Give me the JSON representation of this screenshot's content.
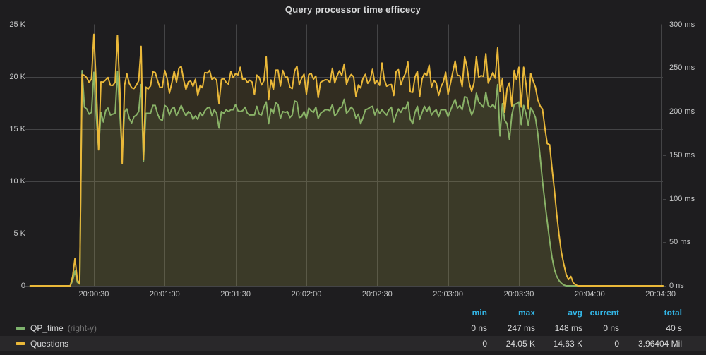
{
  "panel": {
    "title": "Query processor time efficecy"
  },
  "colors": {
    "background": "#1e1d1f",
    "grid": "#444446",
    "axis_text": "#c8c9ca",
    "title_text": "#d8d9da",
    "legend_header": "#33b5e5",
    "legend_text": "#d8d9da",
    "legend_note": "#757575",
    "series_green": "#7EB26D",
    "series_yellow": "#EAB839"
  },
  "chart_data": {
    "type": "line",
    "title": "Query processor time efficecy",
    "x_domain_s": [
      2.5,
      271
    ],
    "x_ticks": [
      {
        "s": 30,
        "label": "20:00:30"
      },
      {
        "s": 60,
        "label": "20:01:00"
      },
      {
        "s": 90,
        "label": "20:01:30"
      },
      {
        "s": 120,
        "label": "20:02:00"
      },
      {
        "s": 150,
        "label": "20:02:30"
      },
      {
        "s": 180,
        "label": "20:03:00"
      },
      {
        "s": 210,
        "label": "20:03:30"
      },
      {
        "s": 240,
        "label": "20:04:00"
      },
      {
        "s": 270,
        "label": "20:04:30"
      }
    ],
    "left_axis": {
      "min": 0,
      "max": 25,
      "unit": "K",
      "ticks": [
        {
          "v": 0,
          "label": "0"
        },
        {
          "v": 5,
          "label": "5 K"
        },
        {
          "v": 10,
          "label": "10 K"
        },
        {
          "v": 15,
          "label": "15 K"
        },
        {
          "v": 20,
          "label": "20 K"
        },
        {
          "v": 25,
          "label": "25 K"
        }
      ]
    },
    "right_axis": {
      "min": 0,
      "max": 300,
      "unit": "ms",
      "ticks": [
        {
          "v": 0,
          "label": "0 ns"
        },
        {
          "v": 50,
          "label": "50 ms"
        },
        {
          "v": 100,
          "label": "100 ms"
        },
        {
          "v": 150,
          "label": "150 ms"
        },
        {
          "v": 200,
          "label": "200 ms"
        },
        {
          "v": 250,
          "label": "250 ms"
        },
        {
          "v": 300,
          "label": "300 ms"
        }
      ]
    },
    "grid": true,
    "legend_position": "bottom",
    "series": [
      {
        "name": "QP_time",
        "axis": "right",
        "unit": "ms",
        "color": "#7EB26D",
        "fill_opacity": 0.1,
        "line_width": 2,
        "t0": 3,
        "dt": 1,
        "values": [
          0,
          0,
          0,
          0,
          0,
          0,
          0,
          0,
          0,
          0,
          0,
          0,
          0,
          0,
          0,
          0,
          0,
          0,
          6,
          17,
          4,
          2,
          247,
          205,
          203,
          197,
          199,
          245,
          196,
          157,
          199,
          188,
          201,
          204,
          196,
          197,
          198,
          246,
          197,
          152,
          200,
          203,
          192,
          187,
          194,
          196,
          200,
          231,
          143,
          198,
          198,
          198,
          207,
          207,
          197,
          191,
          190,
          207,
          205,
          196,
          203,
          205,
          195,
          201,
          207,
          200,
          195,
          200,
          198,
          191,
          195,
          191,
          199,
          195,
          201,
          204,
          205,
          195,
          202,
          198,
          181,
          200,
          198,
          202,
          200,
          202,
          202,
          208,
          201,
          200,
          201,
          205,
          198,
          196,
          196,
          196,
          206,
          197,
          196,
          205,
          211,
          186,
          203,
          198,
          210,
          208,
          192,
          200,
          199,
          200,
          193,
          196,
          212,
          211,
          193,
          194,
          200,
          192,
          204,
          201,
          199,
          205,
          192,
          198,
          200,
          202,
          202,
          201,
          208,
          195,
          198,
          204,
          205,
          214,
          198,
          201,
          205,
          202,
          192,
          197,
          186,
          193,
          202,
          203,
          205,
          206,
          196,
          203,
          198,
          202,
          199,
          196,
          202,
          205,
          188,
          196,
          203,
          199,
          204,
          203,
          211,
          191,
          186,
          199,
          206,
          191,
          199,
          206,
          200,
          206,
          196,
          200,
          202,
          194,
          202,
          202,
          202,
          194,
          201,
          208,
          214,
          204,
          207,
          202,
          217,
          216,
          205,
          196,
          202,
          221,
          211,
          208,
          205,
          222,
          207,
          205,
          208,
          204,
          231,
          172,
          209,
          190,
          186,
          168,
          196,
          208,
          209,
          211,
          185,
          207,
          198,
          184,
          204,
          200,
          193,
          175,
          148,
          120,
          96,
          74,
          52,
          33,
          19,
          11,
          6,
          3,
          1,
          0,
          0,
          0,
          0,
          0,
          0,
          0,
          0,
          0,
          0,
          0,
          0,
          0,
          0,
          0,
          0,
          0,
          0,
          0,
          0,
          0,
          0,
          0,
          0,
          0,
          0,
          0,
          0,
          0,
          0,
          0,
          0,
          0,
          0,
          0,
          0,
          0,
          0,
          0,
          0,
          0,
          0
        ]
      },
      {
        "name": "Questions",
        "axis": "left",
        "unit": "K",
        "color": "#EAB839",
        "fill_opacity": 0.1,
        "line_width": 2,
        "t0": 3,
        "dt": 1,
        "values": [
          0.0,
          0.0,
          0.0,
          0.0,
          0.0,
          0.0,
          0.0,
          0.0,
          0.0,
          0.0,
          0.0,
          0.0,
          0.0,
          0.0,
          0.0,
          0.0,
          0.0,
          0.0,
          0.9,
          2.62,
          0.55,
          0.22,
          20.2,
          20.12,
          19.9,
          19.45,
          19.8,
          24.05,
          19.3,
          13.0,
          19.5,
          19.49,
          19.69,
          19.92,
          19.18,
          19.16,
          19.46,
          23.95,
          18.8,
          11.7,
          19.2,
          20.27,
          19.36,
          18.95,
          18.86,
          19.2,
          19.61,
          22.9,
          12.1,
          19.0,
          18.83,
          19.11,
          20.45,
          20.4,
          19.6,
          18.96,
          19.0,
          20.6,
          19.85,
          18.43,
          19.37,
          20.53,
          19.48,
          20.8,
          20.98,
          19.69,
          18.78,
          19.51,
          19.58,
          19.08,
          19.75,
          18.2,
          19.18,
          18.95,
          20.4,
          20.35,
          20.6,
          19.74,
          19.92,
          19.65,
          17.4,
          19.74,
          19.82,
          19.46,
          19.29,
          20.5,
          19.9,
          20.3,
          20.17,
          20.9,
          19.73,
          19.82,
          19.44,
          19.66,
          19.48,
          18.3,
          20.15,
          19.94,
          19.21,
          19.61,
          21.9,
          17.8,
          19.68,
          18.76,
          20.62,
          20.63,
          19.11,
          20.6,
          19.95,
          19.96,
          19.01,
          18.86,
          20.55,
          21.0,
          19.24,
          19.86,
          20.24,
          18.3,
          20.19,
          20.32,
          19.75,
          20.07,
          18.0,
          19.46,
          19.58,
          19.7,
          19.68,
          19.44,
          20.8,
          19.4,
          20.09,
          20.56,
          20.12,
          21.2,
          19.28,
          19.89,
          20.21,
          20.0,
          18.1,
          19.21,
          18.92,
          19.85,
          20.22,
          19.36,
          19.68,
          20.7,
          19.34,
          19.63,
          19.18,
          21.3,
          19.75,
          19.09,
          19.22,
          19.26,
          18.2,
          20.5,
          20.67,
          19.22,
          19.87,
          20.33,
          21.4,
          18.55,
          18.5,
          19.96,
          20.51,
          18.1,
          19.8,
          20.34,
          20.1,
          21.1,
          19.0,
          19.64,
          19.4,
          18.2,
          19.02,
          19.51,
          20.42,
          18.3,
          19.33,
          20.43,
          21.5,
          20.15,
          20.08,
          19.06,
          21.9,
          20.96,
          19.36,
          18.6,
          19.4,
          21.9,
          19.95,
          20.1,
          20.03,
          22.2,
          19.39,
          19.9,
          20.4,
          19.86,
          22.75,
          18.6,
          19.8,
          16.6,
          18.9,
          19.4,
          17.2,
          20.6,
          19.7,
          20.9,
          17.1,
          20.9,
          19.33,
          16.9,
          20.3,
          19.6,
          19.0,
          17.8,
          17.2,
          16.9,
          15.1,
          13.6,
          13.5,
          11.3,
          9.2,
          6.9,
          4.9,
          3.2,
          2.1,
          1.1,
          0.6,
          0.9,
          0.3,
          0.1,
          0.0,
          0.0,
          0.0,
          0.0,
          0.0,
          0.0,
          0.0,
          0.0,
          0.0,
          0.0,
          0.0,
          0.0,
          0.0,
          0.0,
          0.0,
          0.0,
          0.0,
          0.0,
          0.0,
          0.0,
          0.0,
          0.0,
          0.0,
          0.0,
          0.0,
          0.0,
          0.0,
          0.0,
          0.0,
          0.0,
          0.0,
          0.0,
          0.0,
          0.0,
          0.0,
          0.0,
          0.0
        ]
      }
    ]
  },
  "legend": {
    "columns": [
      "min",
      "max",
      "avg",
      "current",
      "total"
    ],
    "series": [
      {
        "label": "QP_time",
        "note": "(right-y)",
        "color": "#7EB26D",
        "values": {
          "min": "0 ns",
          "max": "247 ms",
          "avg": "148 ms",
          "current": "0 ns",
          "total": "40 s"
        }
      },
      {
        "label": "Questions",
        "note": "",
        "color": "#EAB839",
        "values": {
          "min": "0",
          "max": "24.05 K",
          "avg": "14.63 K",
          "current": "0",
          "total": "3.96404 Mil"
        }
      }
    ]
  }
}
